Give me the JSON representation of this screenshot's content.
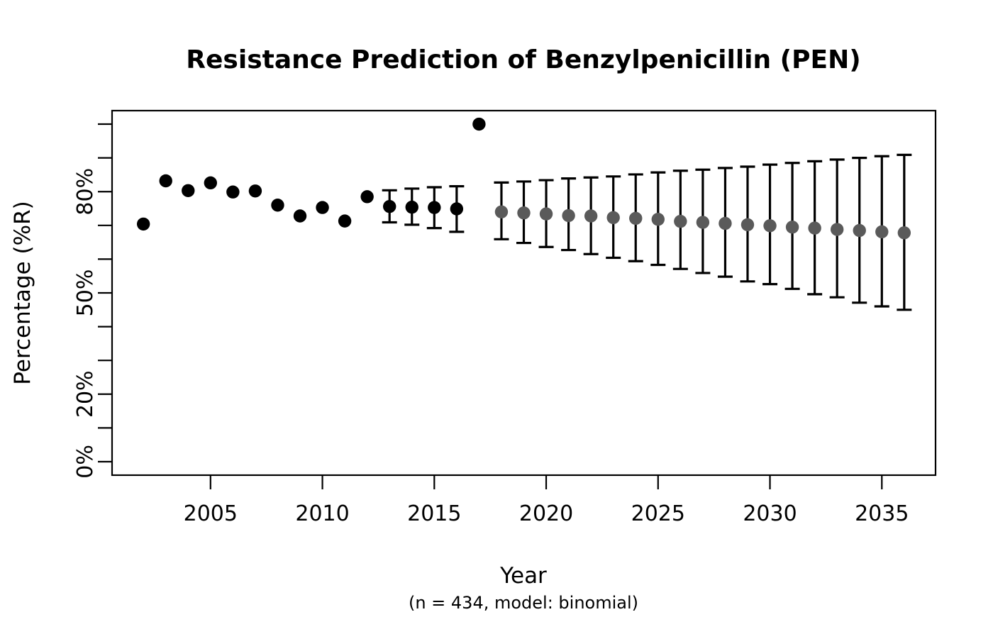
{
  "chart_data": {
    "type": "scatter",
    "title": "Resistance Prediction of Benzylpenicillin (PEN)",
    "xlabel": "Year",
    "xlabel_note": "(n = 434, model: binomial)",
    "ylabel": "Percentage (%R)",
    "grid": false,
    "legend_position": "none",
    "x_ticks": [
      2005,
      2010,
      2015,
      2020,
      2025,
      2030,
      2035
    ],
    "y_ticks": [
      0,
      10,
      20,
      30,
      40,
      50,
      60,
      70,
      80,
      90,
      100
    ],
    "y_tick_labels": [
      {
        "value": 0,
        "label": "0%"
      },
      {
        "value": 20,
        "label": "20%"
      },
      {
        "value": 50,
        "label": "50%"
      },
      {
        "value": 80,
        "label": "80%"
      }
    ],
    "x_range": [
      2000.6,
      2037.4
    ],
    "y_range": [
      -4,
      104
    ],
    "colors": {
      "observed": "#000000",
      "predicted": "#5a5a5a",
      "error_bar": "#000000"
    },
    "series": [
      {
        "name": "observed",
        "color": "#000000",
        "points": [
          {
            "x": 2002,
            "y": 70.4
          },
          {
            "x": 2003,
            "y": 83.2
          },
          {
            "x": 2004,
            "y": 80.3
          },
          {
            "x": 2005,
            "y": 82.6
          },
          {
            "x": 2006,
            "y": 79.9
          },
          {
            "x": 2007,
            "y": 80.2
          },
          {
            "x": 2008,
            "y": 76.0
          },
          {
            "x": 2009,
            "y": 72.8
          },
          {
            "x": 2010,
            "y": 75.3
          },
          {
            "x": 2011,
            "y": 71.3
          },
          {
            "x": 2012,
            "y": 78.5
          },
          {
            "x": 2017,
            "y": 100.0
          }
        ]
      },
      {
        "name": "observed_with_ci",
        "color": "#000000",
        "error_bar_color": "#000000",
        "points": [
          {
            "x": 2013,
            "y": 75.6,
            "lo": 70.9,
            "hi": 80.4
          },
          {
            "x": 2014,
            "y": 75.4,
            "lo": 70.2,
            "hi": 80.9
          },
          {
            "x": 2015,
            "y": 75.3,
            "lo": 69.2,
            "hi": 81.3
          },
          {
            "x": 2016,
            "y": 74.9,
            "lo": 68.1,
            "hi": 81.6
          }
        ]
      },
      {
        "name": "predicted",
        "color": "#5a5a5a",
        "error_bar_color": "#000000",
        "points": [
          {
            "x": 2018,
            "y": 74.0,
            "lo": 65.9,
            "hi": 82.7
          },
          {
            "x": 2019,
            "y": 73.7,
            "lo": 64.8,
            "hi": 83.0
          },
          {
            "x": 2020,
            "y": 73.4,
            "lo": 63.6,
            "hi": 83.4
          },
          {
            "x": 2021,
            "y": 72.9,
            "lo": 62.7,
            "hi": 83.9
          },
          {
            "x": 2022,
            "y": 72.8,
            "lo": 61.5,
            "hi": 84.2
          },
          {
            "x": 2023,
            "y": 72.3,
            "lo": 60.4,
            "hi": 84.5
          },
          {
            "x": 2024,
            "y": 72.1,
            "lo": 59.4,
            "hi": 85.1
          },
          {
            "x": 2025,
            "y": 71.8,
            "lo": 58.3,
            "hi": 85.7
          },
          {
            "x": 2026,
            "y": 71.2,
            "lo": 57.1,
            "hi": 86.2
          },
          {
            "x": 2027,
            "y": 70.9,
            "lo": 55.9,
            "hi": 86.5
          },
          {
            "x": 2028,
            "y": 70.6,
            "lo": 54.8,
            "hi": 87.0
          },
          {
            "x": 2029,
            "y": 70.2,
            "lo": 53.4,
            "hi": 87.4
          },
          {
            "x": 2030,
            "y": 69.9,
            "lo": 52.6,
            "hi": 88.0
          },
          {
            "x": 2031,
            "y": 69.5,
            "lo": 51.2,
            "hi": 88.5
          },
          {
            "x": 2032,
            "y": 69.2,
            "lo": 49.6,
            "hi": 89.0
          },
          {
            "x": 2033,
            "y": 68.8,
            "lo": 48.7,
            "hi": 89.5
          },
          {
            "x": 2034,
            "y": 68.5,
            "lo": 47.1,
            "hi": 90.0
          },
          {
            "x": 2035,
            "y": 68.1,
            "lo": 46.0,
            "hi": 90.5
          },
          {
            "x": 2036,
            "y": 67.8,
            "lo": 45.0,
            "hi": 90.9
          }
        ]
      }
    ]
  }
}
